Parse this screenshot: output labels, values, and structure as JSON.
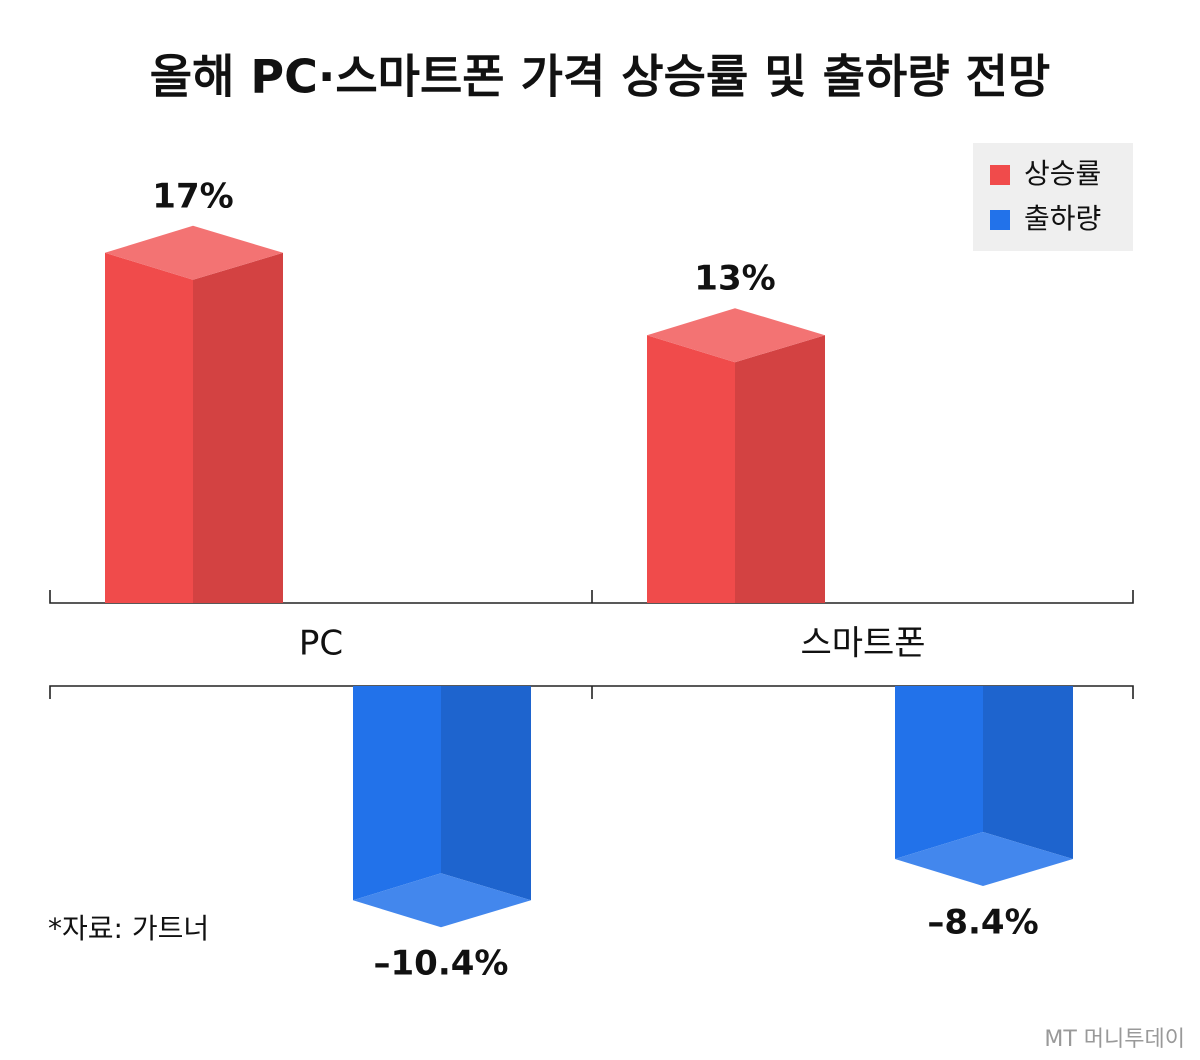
{
  "chart_data": {
    "type": "bar",
    "title": "올해 PC·스마트폰 가격 상승률 및 출하량 전망",
    "categories": [
      "PC",
      "스마트폰"
    ],
    "series": [
      {
        "name": "상승률",
        "color": "#f04b4b",
        "values": [
          17,
          13
        ],
        "value_labels": [
          "17%",
          "13%"
        ]
      },
      {
        "name": "출하량",
        "color": "#2272ea",
        "values": [
          -10.4,
          -8.4
        ],
        "value_labels": [
          "–10.4%",
          "–8.4%"
        ]
      }
    ],
    "legend": "upper right",
    "note": "*자료: 가트너",
    "watermark": "MT 머니투데이"
  }
}
